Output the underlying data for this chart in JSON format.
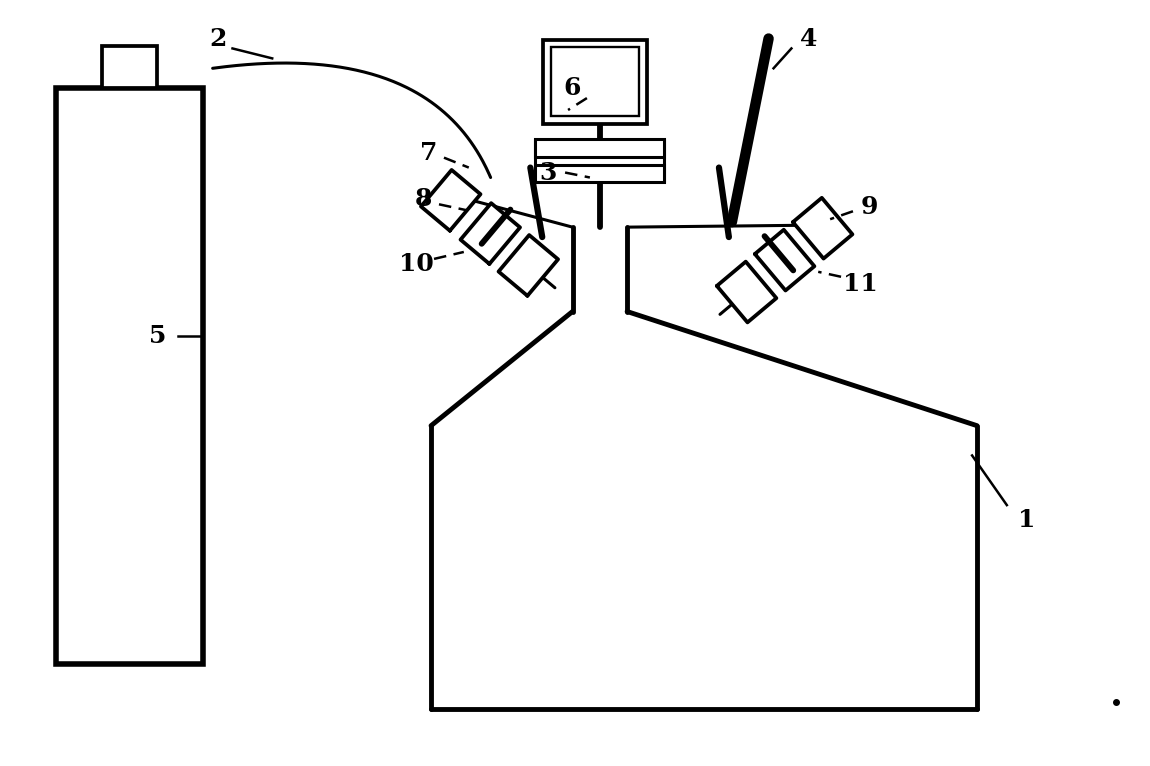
{
  "bg_color": "#ffffff",
  "line_color": "#000000",
  "lw": 2.2,
  "lw_thick": 3.5,
  "fig_width": 11.5,
  "fig_height": 7.66
}
